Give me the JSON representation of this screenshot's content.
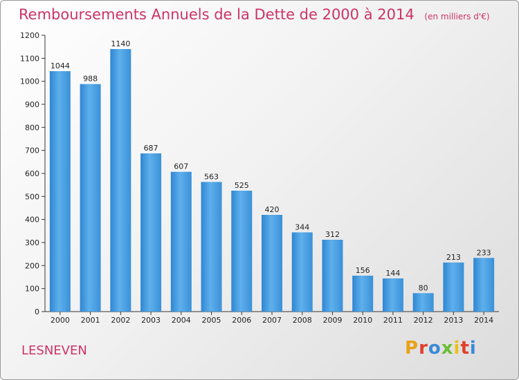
{
  "chart_data": {
    "type": "bar",
    "title": "Remboursements Annuels de la Dette de 2000 à 2014",
    "subtitle": "(en milliers d'€)",
    "categories": [
      "2000",
      "2001",
      "2002",
      "2003",
      "2004",
      "2005",
      "2006",
      "2007",
      "2008",
      "2009",
      "2010",
      "2011",
      "2012",
      "2013",
      "2014"
    ],
    "values": [
      1044,
      988,
      1140,
      687,
      607,
      563,
      525,
      420,
      344,
      312,
      156,
      144,
      80,
      213,
      233
    ],
    "ylim": [
      0,
      1200
    ],
    "yticks": [
      0,
      100,
      200,
      300,
      400,
      500,
      600,
      700,
      800,
      900,
      1000,
      1100,
      1200
    ],
    "grid": false,
    "bar_color": "#4a9fe0"
  },
  "town": "LESNEVEN",
  "logo": {
    "text": "Proxiti",
    "colors": [
      "#e8a11a",
      "#e0402a",
      "#3a8ad8",
      "#6cbd35",
      "#e8c21a",
      "#e0402a",
      "#3a8ad8"
    ]
  }
}
